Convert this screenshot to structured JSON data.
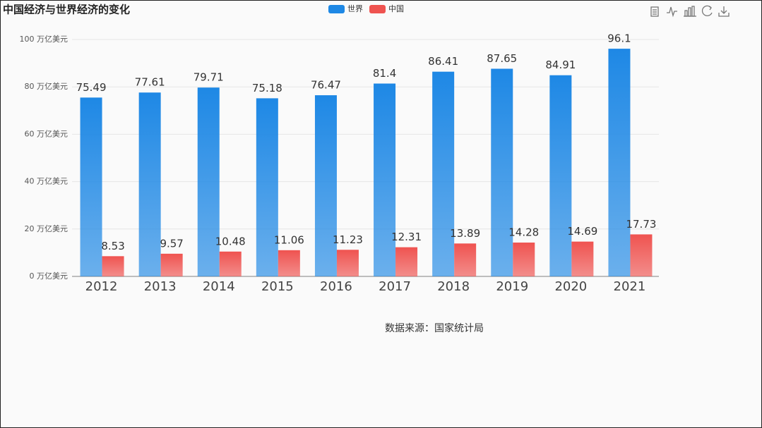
{
  "chart_data": {
    "type": "bar",
    "title": "中国经济与世界经济的变化",
    "categories": [
      "2012",
      "2013",
      "2014",
      "2015",
      "2016",
      "2017",
      "2018",
      "2019",
      "2020",
      "2021"
    ],
    "series": [
      {
        "name": "世界",
        "color": "#1e88e5",
        "values": [
          75.49,
          77.61,
          79.71,
          75.18,
          76.47,
          81.4,
          86.41,
          87.65,
          84.91,
          96.1
        ]
      },
      {
        "name": "中国",
        "color": "#ef5350",
        "values": [
          8.53,
          9.57,
          10.48,
          11.06,
          11.23,
          12.31,
          13.89,
          14.28,
          14.69,
          17.73
        ]
      }
    ],
    "ylim": [
      0,
      100
    ],
    "yticks": [
      {
        "value": 0,
        "label": "0 万亿美元"
      },
      {
        "value": 20,
        "label": "20 万亿美元"
      },
      {
        "value": 40,
        "label": "40 万亿美元"
      },
      {
        "value": 60,
        "label": "60 万亿美元"
      },
      {
        "value": 80,
        "label": "80 万亿美元"
      },
      {
        "value": 100,
        "label": "100 万亿美元"
      }
    ],
    "grid": true,
    "legend": "top",
    "annotation": "数据来源：国家统计局"
  }
}
